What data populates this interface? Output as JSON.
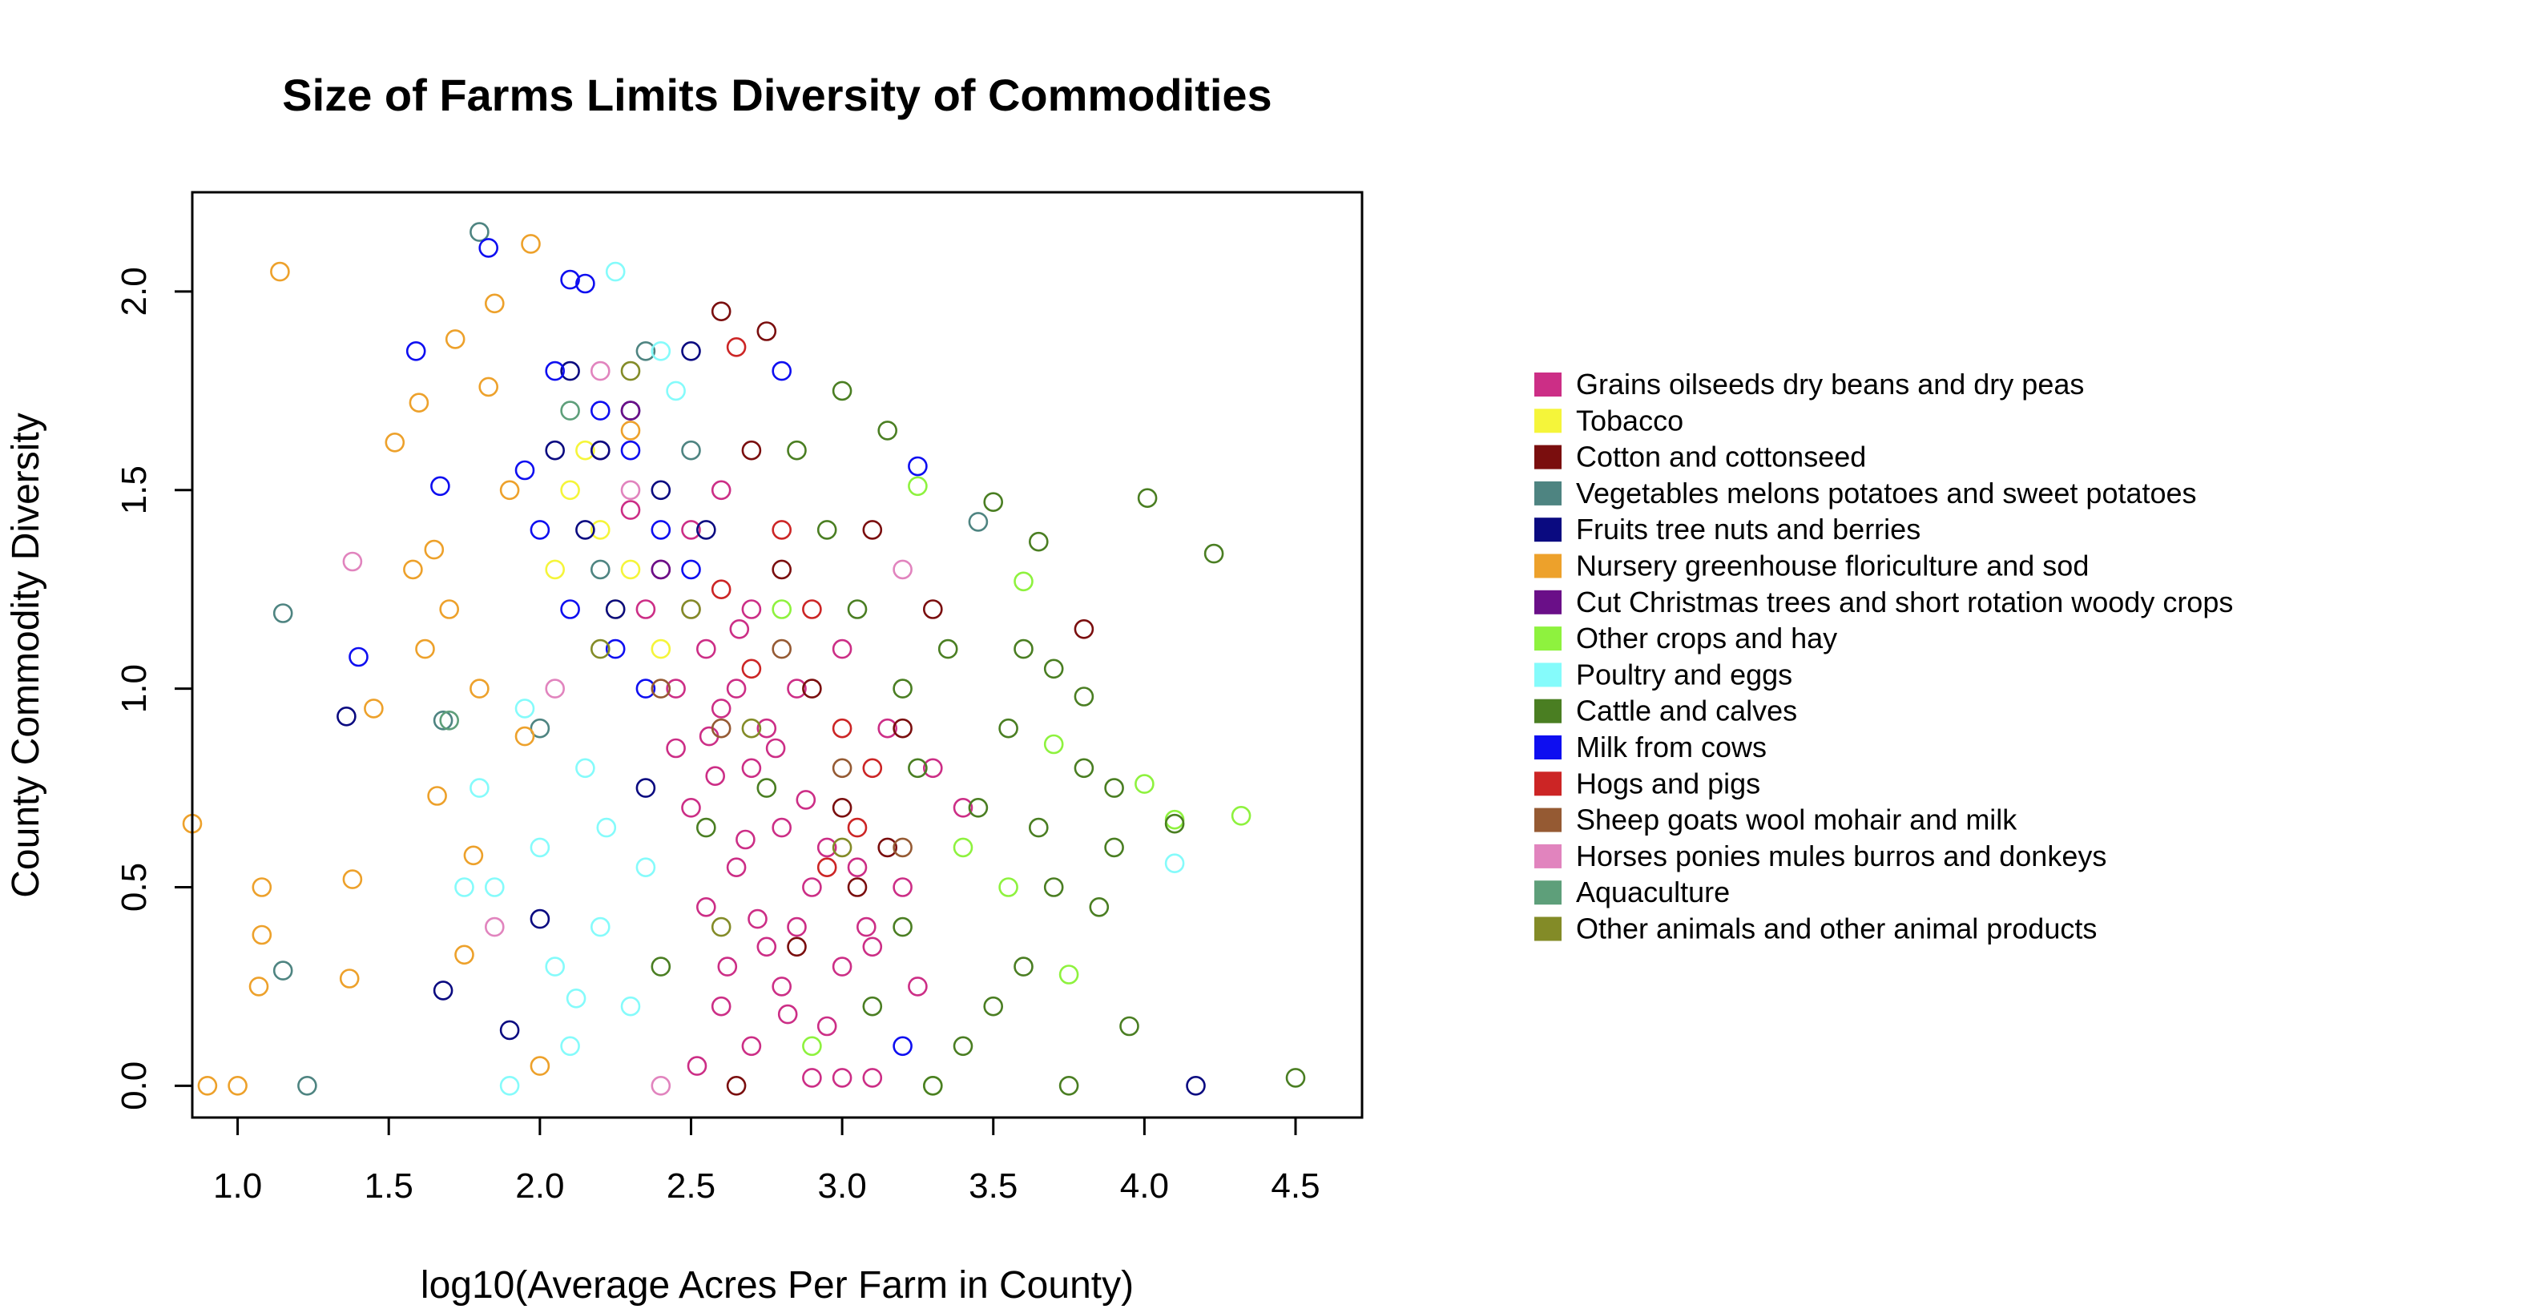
{
  "chart_data": {
    "type": "scatter",
    "title": "Size of Farms Limits Diversity of Commodities",
    "xlabel": "log10(Average Acres Per Farm in County)",
    "ylabel": "County Commodity Diversity",
    "xlim": [
      0.85,
      4.72
    ],
    "ylim": [
      -0.08,
      2.25
    ],
    "x_ticks": [
      1.0,
      1.5,
      2.0,
      2.5,
      3.0,
      3.5,
      4.0,
      4.5
    ],
    "x_tick_labels": [
      "1.0",
      "1.5",
      "2.0",
      "2.5",
      "3.0",
      "3.5",
      "4.0",
      "4.5"
    ],
    "y_ticks": [
      0.0,
      0.5,
      1.0,
      1.5,
      2.0
    ],
    "y_tick_labels": [
      "0.0",
      "0.5",
      "1.0",
      "1.5",
      "2.0"
    ],
    "grid": false,
    "marker": "open-circle",
    "legend_position": "right",
    "series": [
      {
        "name": "Grains oilseeds dry beans and dry peas",
        "color": "#CC2E86",
        "points": [
          [
            2.6,
            0.95
          ],
          [
            2.7,
            0.8
          ],
          [
            2.5,
            0.7
          ],
          [
            2.8,
            0.65
          ],
          [
            2.9,
            0.5
          ],
          [
            3.0,
            0.3
          ],
          [
            2.65,
            1.0
          ],
          [
            2.75,
            0.9
          ],
          [
            2.55,
            1.1
          ],
          [
            2.85,
            0.4
          ],
          [
            3.1,
            0.35
          ],
          [
            2.95,
            0.6
          ],
          [
            2.45,
            0.85
          ],
          [
            2.6,
            0.2
          ],
          [
            2.7,
            0.1
          ],
          [
            2.9,
            0.02
          ],
          [
            3.0,
            0.02
          ],
          [
            3.1,
            0.02
          ],
          [
            2.8,
            0.25
          ],
          [
            3.2,
            0.5
          ],
          [
            2.4,
            1.3
          ],
          [
            2.5,
            1.4
          ],
          [
            2.6,
            1.5
          ],
          [
            2.7,
            1.2
          ],
          [
            2.65,
            0.55
          ],
          [
            2.85,
            1.0
          ],
          [
            3.3,
            0.8
          ],
          [
            3.4,
            0.7
          ],
          [
            2.55,
            0.45
          ],
          [
            2.75,
            0.35
          ],
          [
            2.95,
            0.15
          ],
          [
            3.05,
            0.55
          ],
          [
            2.35,
            1.2
          ],
          [
            2.2,
            1.6
          ],
          [
            2.3,
            1.45
          ],
          [
            2.68,
            0.62
          ],
          [
            2.58,
            0.78
          ],
          [
            2.72,
            0.42
          ],
          [
            2.88,
            0.72
          ],
          [
            3.15,
            0.9
          ],
          [
            2.62,
            0.3
          ],
          [
            2.52,
            0.05
          ],
          [
            2.78,
            0.85
          ],
          [
            3.0,
            1.1
          ],
          [
            2.45,
            1.0
          ],
          [
            3.25,
            0.25
          ],
          [
            2.66,
            1.15
          ],
          [
            2.56,
            0.88
          ],
          [
            2.82,
            0.18
          ],
          [
            3.08,
            0.4
          ]
        ]
      },
      {
        "name": "Tobacco",
        "color": "#F5F53A",
        "points": [
          [
            2.1,
            1.5
          ],
          [
            2.2,
            1.4
          ],
          [
            2.3,
            1.3
          ],
          [
            2.15,
            1.6
          ],
          [
            2.25,
            1.2
          ],
          [
            2.4,
            1.1
          ],
          [
            2.05,
            1.3
          ]
        ]
      },
      {
        "name": "Cotton and cottonseed",
        "color": "#7A0E0E",
        "points": [
          [
            2.6,
            1.95
          ],
          [
            2.75,
            1.9
          ],
          [
            3.1,
            1.4
          ],
          [
            3.3,
            1.2
          ],
          [
            2.9,
            1.0
          ],
          [
            3.0,
            0.7
          ],
          [
            3.8,
            1.15
          ],
          [
            2.7,
            1.6
          ],
          [
            2.8,
            1.3
          ],
          [
            3.2,
            0.9
          ],
          [
            3.05,
            0.5
          ],
          [
            2.65,
            0.0
          ],
          [
            2.85,
            0.35
          ],
          [
            3.15,
            0.6
          ]
        ]
      },
      {
        "name": "Vegetables melons potatoes and sweet potatoes",
        "color": "#4E8481",
        "points": [
          [
            1.15,
            1.19
          ],
          [
            1.15,
            0.29
          ],
          [
            1.23,
            0.0
          ],
          [
            1.8,
            2.15
          ],
          [
            1.68,
            0.92
          ],
          [
            2.35,
            1.85
          ],
          [
            3.45,
            1.42
          ],
          [
            2.5,
            1.6
          ],
          [
            2.2,
            1.3
          ],
          [
            2.0,
            0.9
          ]
        ]
      },
      {
        "name": "Fruits tree nuts and berries",
        "color": "#0A0A80",
        "points": [
          [
            1.36,
            0.93
          ],
          [
            1.68,
            0.24
          ],
          [
            1.9,
            0.14
          ],
          [
            4.17,
            0.0
          ],
          [
            2.1,
            1.8
          ],
          [
            2.2,
            1.6
          ],
          [
            2.3,
            1.7
          ],
          [
            2.4,
            1.5
          ],
          [
            2.15,
            1.4
          ],
          [
            2.25,
            1.2
          ],
          [
            2.05,
            1.6
          ],
          [
            2.35,
            0.75
          ],
          [
            2.0,
            0.42
          ],
          [
            2.5,
            1.85
          ],
          [
            2.55,
            1.4
          ]
        ]
      },
      {
        "name": "Nursery greenhouse floriculture and sod",
        "color": "#EDA12B",
        "points": [
          [
            1.14,
            2.05
          ],
          [
            1.08,
            0.5
          ],
          [
            1.08,
            0.38
          ],
          [
            1.07,
            0.25
          ],
          [
            0.9,
            0.0
          ],
          [
            1.0,
            0.0
          ],
          [
            1.37,
            0.27
          ],
          [
            1.38,
            0.52
          ],
          [
            1.45,
            0.95
          ],
          [
            1.52,
            1.62
          ],
          [
            1.6,
            1.72
          ],
          [
            1.65,
            1.35
          ],
          [
            1.7,
            1.2
          ],
          [
            1.66,
            0.73
          ],
          [
            1.75,
            0.33
          ],
          [
            1.8,
            1.0
          ],
          [
            1.85,
            1.97
          ],
          [
            1.97,
            2.12
          ],
          [
            1.9,
            1.5
          ],
          [
            1.62,
            1.1
          ],
          [
            1.78,
            0.58
          ],
          [
            1.72,
            1.88
          ],
          [
            1.58,
            1.3
          ],
          [
            0.85,
            0.66
          ],
          [
            1.95,
            0.88
          ],
          [
            2.0,
            0.05
          ],
          [
            2.3,
            1.65
          ],
          [
            1.83,
            1.76
          ]
        ]
      },
      {
        "name": "Cut Christmas trees and short rotation woody crops",
        "color": "#6A0F88",
        "points": [
          [
            2.3,
            1.7
          ],
          [
            2.4,
            1.3
          ]
        ]
      },
      {
        "name": "Other crops and hay",
        "color": "#8EF23E",
        "points": [
          [
            3.6,
            1.27
          ],
          [
            3.7,
            0.86
          ],
          [
            4.0,
            0.76
          ],
          [
            4.1,
            0.67
          ],
          [
            4.32,
            0.68
          ],
          [
            3.55,
            0.5
          ],
          [
            3.25,
            1.51
          ],
          [
            3.4,
            0.6
          ],
          [
            2.8,
            1.2
          ],
          [
            3.75,
            0.28
          ],
          [
            2.9,
            0.1
          ],
          [
            3.3,
            0.0
          ]
        ]
      },
      {
        "name": "Poultry and eggs",
        "color": "#85FBFB",
        "points": [
          [
            1.95,
            0.95
          ],
          [
            2.0,
            0.6
          ],
          [
            2.05,
            0.3
          ],
          [
            2.1,
            0.1
          ],
          [
            2.2,
            0.4
          ],
          [
            2.25,
            2.05
          ],
          [
            2.3,
            0.2
          ],
          [
            2.15,
            0.8
          ],
          [
            1.85,
            0.5
          ],
          [
            1.9,
            0.0
          ],
          [
            2.35,
            0.55
          ],
          [
            2.4,
            1.85
          ],
          [
            2.45,
            1.75
          ],
          [
            1.8,
            0.75
          ],
          [
            1.75,
            0.5
          ],
          [
            4.1,
            0.56
          ],
          [
            2.22,
            0.65
          ],
          [
            2.12,
            0.22
          ]
        ]
      },
      {
        "name": "Cattle and calves",
        "color": "#4A7E22",
        "points": [
          [
            3.5,
            1.47
          ],
          [
            3.65,
            1.37
          ],
          [
            4.01,
            1.48
          ],
          [
            4.23,
            1.34
          ],
          [
            3.8,
            0.8
          ],
          [
            3.9,
            0.6
          ],
          [
            4.5,
            0.02
          ],
          [
            3.7,
            0.5
          ],
          [
            3.6,
            0.3
          ],
          [
            3.4,
            0.1
          ],
          [
            3.3,
            0.0
          ],
          [
            3.2,
            0.4
          ],
          [
            3.1,
            0.2
          ],
          [
            3.0,
            1.75
          ],
          [
            3.15,
            1.65
          ],
          [
            3.55,
            0.9
          ],
          [
            3.75,
            0.0
          ],
          [
            3.95,
            0.15
          ],
          [
            3.85,
            0.45
          ],
          [
            3.45,
            0.7
          ],
          [
            3.35,
            1.1
          ],
          [
            3.25,
            0.8
          ],
          [
            2.95,
            1.4
          ],
          [
            2.85,
            1.6
          ],
          [
            3.05,
            1.2
          ],
          [
            3.65,
            0.65
          ],
          [
            3.5,
            0.2
          ],
          [
            3.9,
            0.75
          ],
          [
            4.1,
            0.66
          ],
          [
            2.75,
            0.75
          ],
          [
            2.55,
            0.65
          ],
          [
            2.4,
            0.3
          ],
          [
            3.7,
            1.05
          ],
          [
            3.6,
            1.1
          ],
          [
            3.8,
            0.98
          ],
          [
            3.2,
            1.0
          ]
        ]
      },
      {
        "name": "Milk from cows",
        "color": "#0E0EF0",
        "points": [
          [
            1.83,
            2.11
          ],
          [
            2.1,
            2.03
          ],
          [
            2.15,
            2.02
          ],
          [
            1.59,
            1.85
          ],
          [
            1.67,
            1.51
          ],
          [
            1.4,
            1.08
          ],
          [
            2.05,
            1.8
          ],
          [
            2.2,
            1.7
          ],
          [
            2.3,
            1.6
          ],
          [
            2.4,
            1.4
          ],
          [
            3.25,
            1.56
          ],
          [
            2.8,
            1.8
          ],
          [
            2.0,
            1.4
          ],
          [
            2.1,
            1.2
          ],
          [
            2.25,
            1.1
          ],
          [
            2.35,
            1.0
          ],
          [
            1.95,
            1.55
          ],
          [
            2.5,
            1.3
          ],
          [
            3.2,
            0.1
          ]
        ]
      },
      {
        "name": "Hogs and pigs",
        "color": "#CC2525",
        "points": [
          [
            2.65,
            1.86
          ],
          [
            2.8,
            1.4
          ],
          [
            2.9,
            1.2
          ],
          [
            3.0,
            0.9
          ],
          [
            3.1,
            0.8
          ],
          [
            2.7,
            1.05
          ],
          [
            2.95,
            0.55
          ],
          [
            3.05,
            0.65
          ],
          [
            2.6,
            1.25
          ]
        ]
      },
      {
        "name": "Sheep goats wool mohair and milk",
        "color": "#955A33",
        "points": [
          [
            2.8,
            1.1
          ],
          [
            3.0,
            0.8
          ],
          [
            2.6,
            0.9
          ],
          [
            3.2,
            0.6
          ],
          [
            2.4,
            1.0
          ]
        ]
      },
      {
        "name": "Horses ponies mules burros and donkeys",
        "color": "#E184BE",
        "points": [
          [
            1.38,
            1.32
          ],
          [
            2.05,
            1.0
          ],
          [
            2.2,
            1.8
          ],
          [
            2.3,
            1.5
          ],
          [
            2.5,
            1.2
          ],
          [
            2.4,
            0.0
          ],
          [
            1.85,
            0.4
          ],
          [
            3.2,
            1.3
          ]
        ]
      },
      {
        "name": "Aquaculture",
        "color": "#5E9F7A",
        "points": [
          [
            1.7,
            0.92
          ],
          [
            2.1,
            1.7
          ]
        ]
      },
      {
        "name": "Other animals and other animal products",
        "color": "#838B27",
        "points": [
          [
            2.3,
            1.8
          ],
          [
            2.5,
            1.2
          ],
          [
            2.7,
            0.9
          ],
          [
            3.0,
            0.6
          ],
          [
            2.2,
            1.1
          ],
          [
            2.6,
            0.4
          ]
        ]
      }
    ]
  }
}
